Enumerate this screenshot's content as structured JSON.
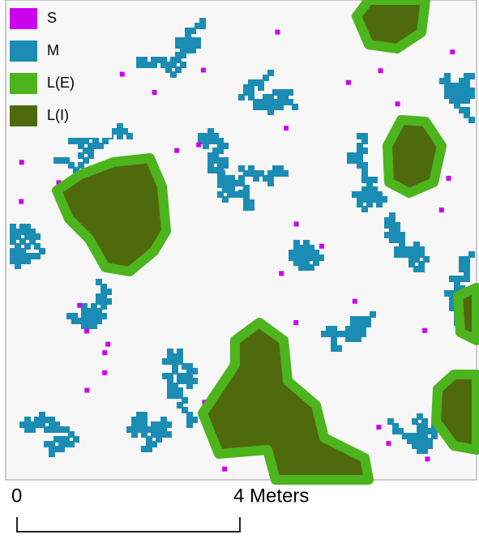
{
  "legend": {
    "items": [
      {
        "label": "S",
        "color": "#cc00ee"
      },
      {
        "label": "M",
        "color": "#1b8cb4"
      },
      {
        "label": "L(E)",
        "color": "#4cb41c"
      },
      {
        "label": "L(I)",
        "color": "#4f6a0c"
      }
    ]
  },
  "scale_bar": {
    "start_label": "0",
    "end_label": "4 Meters"
  }
}
